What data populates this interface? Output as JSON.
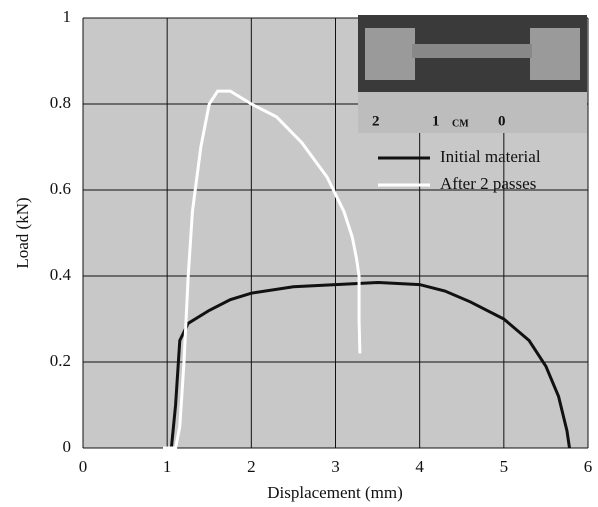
{
  "chart_data": {
    "type": "line",
    "xlabel": "Displacement (mm)",
    "ylabel": "Load (kN)",
    "xlim": [
      0,
      6
    ],
    "ylim": [
      0,
      1
    ],
    "xticks": [
      0,
      1,
      2,
      3,
      4,
      5,
      6
    ],
    "yticks": [
      0,
      0.2,
      0.4,
      0.6,
      0.8,
      1
    ],
    "grid": true,
    "legend": "upper right",
    "photo_scale_labels": [
      "2",
      "1",
      "CM",
      "0"
    ],
    "series": [
      {
        "name": "Initial material",
        "color": "#111111",
        "x": [
          0.95,
          1.05,
          1.1,
          1.15,
          1.25,
          1.5,
          1.75,
          2,
          2.5,
          3,
          3.5,
          4,
          4.3,
          4.6,
          5,
          5.3,
          5.5,
          5.65,
          5.75,
          5.78
        ],
        "values": [
          0,
          0,
          0.1,
          0.25,
          0.29,
          0.32,
          0.345,
          0.36,
          0.375,
          0.38,
          0.385,
          0.38,
          0.365,
          0.34,
          0.3,
          0.25,
          0.19,
          0.12,
          0.04,
          0
        ]
      },
      {
        "name": "After 2 passes",
        "color": "#ffffff",
        "x": [
          0.95,
          1.1,
          1.15,
          1.2,
          1.25,
          1.3,
          1.4,
          1.5,
          1.6,
          1.75,
          2,
          2.3,
          2.6,
          2.9,
          3.1,
          3.2,
          3.25,
          3.28,
          3.28,
          3.29
        ],
        "values": [
          0,
          0,
          0.05,
          0.2,
          0.4,
          0.55,
          0.7,
          0.8,
          0.83,
          0.83,
          0.8,
          0.77,
          0.71,
          0.63,
          0.55,
          0.49,
          0.44,
          0.4,
          0.3,
          0.22
        ]
      }
    ]
  }
}
